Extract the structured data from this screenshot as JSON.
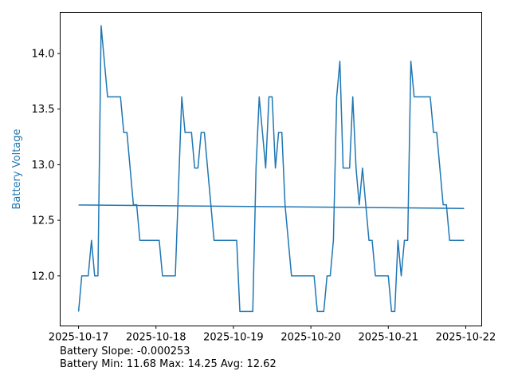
{
  "chart_data": {
    "type": "line",
    "title": "",
    "xlabel": "",
    "ylabel": "Battery Voltage",
    "ylabel_color": "#1f77b4",
    "line_color": "#1f77b4",
    "xlim": [
      "2025-10-16 18:18",
      "2025-10-22 04:57"
    ],
    "ylim": [
      11.55,
      14.37
    ],
    "grid": false,
    "x_ticks": [
      "2025-10-17",
      "2025-10-18",
      "2025-10-19",
      "2025-10-20",
      "2025-10-21",
      "2025-10-22"
    ],
    "y_ticks": [
      "12.0",
      "12.5",
      "13.0",
      "13.5",
      "14.0"
    ],
    "series": [
      {
        "x": [
          "2025-10-17 00:00",
          "2025-10-17 01:00",
          "2025-10-17 03:00",
          "2025-10-17 04:00",
          "2025-10-17 05:00",
          "2025-10-17 06:00",
          "2025-10-17 07:00",
          "2025-10-17 09:00",
          "2025-10-17 13:00",
          "2025-10-17 14:00",
          "2025-10-17 15:00",
          "2025-10-17 17:00",
          "2025-10-17 18:00",
          "2025-10-17 19:00",
          "2025-10-18 01:00",
          "2025-10-18 02:00",
          "2025-10-18 06:00",
          "2025-10-18 08:00",
          "2025-10-18 09:00",
          "2025-10-18 11:00",
          "2025-10-18 12:00",
          "2025-10-18 13:00",
          "2025-10-18 14:00",
          "2025-10-18 15:00",
          "2025-10-18 18:00",
          "2025-10-19 01:00",
          "2025-10-19 02:00",
          "2025-10-19 06:00",
          "2025-10-19 07:00",
          "2025-10-19 08:00",
          "2025-10-19 10:00",
          "2025-10-19 11:00",
          "2025-10-19 12:00",
          "2025-10-19 13:00",
          "2025-10-19 14:00",
          "2025-10-19 15:00",
          "2025-10-19 16:00",
          "2025-10-19 18:00",
          "2025-10-20 01:00",
          "2025-10-20 02:00",
          "2025-10-20 04:00",
          "2025-10-20 05:00",
          "2025-10-20 06:00",
          "2025-10-20 07:00",
          "2025-10-20 08:00",
          "2025-10-20 09:00",
          "2025-10-20 10:00",
          "2025-10-20 12:00",
          "2025-10-20 13:00",
          "2025-10-20 14:00",
          "2025-10-20 15:00",
          "2025-10-20 16:00",
          "2025-10-20 18:00",
          "2025-10-20 19:00",
          "2025-10-20 20:00",
          "2025-10-21 00:00",
          "2025-10-21 01:00",
          "2025-10-21 02:00",
          "2025-10-21 03:00",
          "2025-10-21 04:00",
          "2025-10-21 05:00",
          "2025-10-21 06:00",
          "2025-10-21 07:00",
          "2025-10-21 08:00",
          "2025-10-21 13:00",
          "2025-10-21 14:00",
          "2025-10-21 15:00",
          "2025-10-21 17:00",
          "2025-10-21 18:00",
          "2025-10-21 19:00",
          "2025-10-21 23:30"
        ],
        "y": [
          11.68,
          12.0,
          12.0,
          12.32,
          12.0,
          12.0,
          14.25,
          13.61,
          13.61,
          13.29,
          13.29,
          12.64,
          12.64,
          12.32,
          12.32,
          12.0,
          12.0,
          13.61,
          13.29,
          13.29,
          12.97,
          12.97,
          13.29,
          13.29,
          12.32,
          12.32,
          11.68,
          11.68,
          12.97,
          13.61,
          12.97,
          13.61,
          13.61,
          12.97,
          13.29,
          13.29,
          12.64,
          12.0,
          12.0,
          11.68,
          11.68,
          12.0,
          12.0,
          12.32,
          13.61,
          13.93,
          12.97,
          12.97,
          13.61,
          12.97,
          12.64,
          12.97,
          12.32,
          12.32,
          12.0,
          12.0,
          11.68,
          11.68,
          12.32,
          12.0,
          12.32,
          12.32,
          13.93,
          13.61,
          13.61,
          13.29,
          13.29,
          12.64,
          12.64,
          12.32,
          12.32
        ]
      },
      {
        "x": [
          "2025-10-17 00:00",
          "2025-10-21 23:30"
        ],
        "y": [
          12.638,
          12.607
        ]
      }
    ]
  },
  "stats": {
    "slope_line": "Battery Slope: -0.000253",
    "minmax_line": "Battery Min: 11.68 Max: 14.25 Avg: 12.62"
  }
}
